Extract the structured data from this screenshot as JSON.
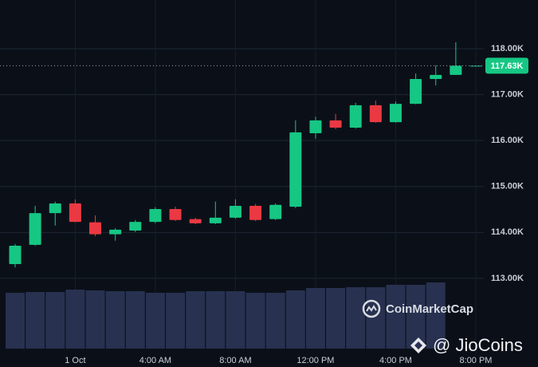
{
  "chart_data": {
    "type": "candlestick",
    "categories": [
      null,
      null,
      null,
      "1 Oct",
      null,
      null,
      null,
      "4:00 AM",
      null,
      null,
      null,
      "8:00 AM",
      null,
      null,
      null,
      "12:00 PM",
      null,
      null,
      null,
      "4:00 PM",
      null,
      null,
      null,
      "8:00 PM"
    ],
    "open": [
      113310,
      113730,
      114420,
      114630,
      114220,
      113960,
      114040,
      114230,
      114510,
      114290,
      114200,
      114320,
      114580,
      114290,
      114560,
      116160,
      116440,
      116280,
      116770,
      116400,
      116800,
      117340,
      117430,
      117630
    ],
    "high": [
      113750,
      114580,
      114670,
      114720,
      114370,
      114090,
      114270,
      114550,
      114560,
      114320,
      114670,
      114720,
      114620,
      114630,
      116440,
      116520,
      116580,
      116820,
      116870,
      116850,
      117460,
      117640,
      118140,
      117630
    ],
    "low": [
      113240,
      113710,
      114150,
      114220,
      113920,
      113820,
      114010,
      114200,
      114250,
      114180,
      114180,
      114300,
      114250,
      114270,
      114530,
      116040,
      116250,
      116260,
      116390,
      116390,
      116790,
      117200,
      117430,
      117630
    ],
    "close": [
      113710,
      114420,
      114630,
      114230,
      113960,
      114060,
      114230,
      114510,
      114270,
      114200,
      114320,
      114580,
      114270,
      114600,
      116180,
      116440,
      116280,
      116770,
      116400,
      116800,
      117340,
      117430,
      117630,
      117630
    ],
    "volume": [
      70,
      71,
      71,
      74,
      73,
      72,
      72,
      70,
      70,
      72,
      72,
      72,
      70,
      70,
      73,
      76,
      76,
      77,
      77,
      80,
      80,
      83,
      null,
      null
    ],
    "up_color": "#16c784",
    "down_color": "#ea3943",
    "volume_color": "#283150",
    "ylim": [
      111470,
      119060
    ],
    "yticks": [
      {
        "value": 113000,
        "label": "113.00K"
      },
      {
        "value": 114000,
        "label": "114.00K"
      },
      {
        "value": 115000,
        "label": "115.00K"
      },
      {
        "value": 116000,
        "label": "116.00K"
      },
      {
        "value": 117000,
        "label": "117.00K"
      },
      {
        "value": 118000,
        "label": "118.00K"
      }
    ],
    "last_price": {
      "value": 117630,
      "label": "117.63K"
    },
    "grid": true
  },
  "watermarks": {
    "source": "CoinMarketCap",
    "handle": "@ JioCoins"
  }
}
